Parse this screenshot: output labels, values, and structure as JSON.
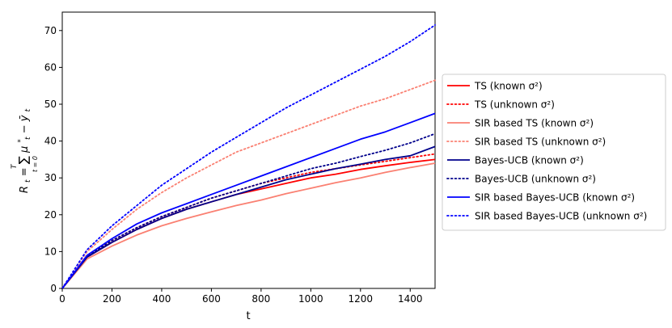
{
  "chart_data": {
    "type": "line",
    "xlabel": "t",
    "ylabel_parts": {
      "main": "R",
      "main_sub": "t",
      "eq": " = ",
      "sum": "∑",
      "sum_sup": "T",
      "sum_sub": "t = 0",
      "mu": "μ",
      "mu_sub": "t",
      "mu_sup": "*",
      "minus": " − ",
      "y": "ȳ",
      "y_sub": "t"
    },
    "xlim": [
      0,
      1500
    ],
    "ylim": [
      0,
      75
    ],
    "xticks": [
      0,
      200,
      400,
      600,
      800,
      1000,
      1200,
      1400
    ],
    "yticks": [
      0,
      10,
      20,
      30,
      40,
      50,
      60,
      70
    ],
    "grid": false,
    "legend_position": "right",
    "x": [
      0,
      100,
      200,
      300,
      400,
      500,
      600,
      700,
      800,
      900,
      1000,
      1100,
      1200,
      1300,
      1400,
      1500
    ],
    "series": [
      {
        "name": "TS (known σ²)",
        "color": "#ff0000",
        "style": "solid",
        "values": [
          0,
          8.5,
          12.5,
          16,
          19,
          21.5,
          23.5,
          25.5,
          27,
          28.5,
          30,
          31,
          32.3,
          33.3,
          34.2,
          35
        ]
      },
      {
        "name": "TS (unknown σ²)",
        "color": "#ff0000",
        "style": "dotted",
        "values": [
          0,
          8.8,
          13,
          16.5,
          19.5,
          22,
          24.5,
          26.5,
          28.5,
          30,
          31.5,
          32.5,
          33.5,
          34.5,
          35.5,
          36.5
        ]
      },
      {
        "name": "SIR based TS (known σ²)",
        "color": "#fa8072",
        "style": "solid",
        "values": [
          0,
          8,
          11.5,
          14.5,
          17,
          19,
          20.8,
          22.5,
          24,
          25.7,
          27.2,
          28.7,
          30,
          31.5,
          32.8,
          34
        ]
      },
      {
        "name": "SIR based TS (unknown σ²)",
        "color": "#fa8072",
        "style": "dotted",
        "values": [
          0,
          10,
          16,
          21.5,
          26,
          30,
          33.5,
          37,
          39.5,
          42,
          44.5,
          47,
          49.5,
          51.5,
          54,
          56.5
        ]
      },
      {
        "name": "Bayes-UCB (known σ²)",
        "color": "#00008b",
        "style": "solid",
        "values": [
          0,
          8.5,
          12.5,
          16,
          19,
          21.5,
          23.5,
          25.5,
          27.5,
          29.5,
          31,
          32.5,
          33.7,
          35,
          36,
          38.5
        ]
      },
      {
        "name": "Bayes-UCB (unknown σ²)",
        "color": "#00008b",
        "style": "dotted",
        "values": [
          0,
          8.8,
          13,
          16.5,
          19.5,
          22,
          24.5,
          26.5,
          28.5,
          30.5,
          32.5,
          34,
          35.8,
          37.5,
          39.5,
          42
        ]
      },
      {
        "name": "SIR based Bayes-UCB (known σ²)",
        "color": "#0000ff",
        "style": "solid",
        "values": [
          0,
          9,
          13.5,
          17.5,
          20.5,
          23,
          25.5,
          28,
          30.5,
          33,
          35.5,
          38,
          40.5,
          42.5,
          45,
          47.5
        ]
      },
      {
        "name": "SIR based Bayes-UCB (unknown σ²)",
        "color": "#0000ff",
        "style": "dotted",
        "values": [
          0,
          10.5,
          17,
          22.5,
          28,
          32.5,
          37,
          41,
          45,
          49,
          52.5,
          56,
          59.5,
          63,
          67,
          71.5
        ]
      }
    ]
  }
}
